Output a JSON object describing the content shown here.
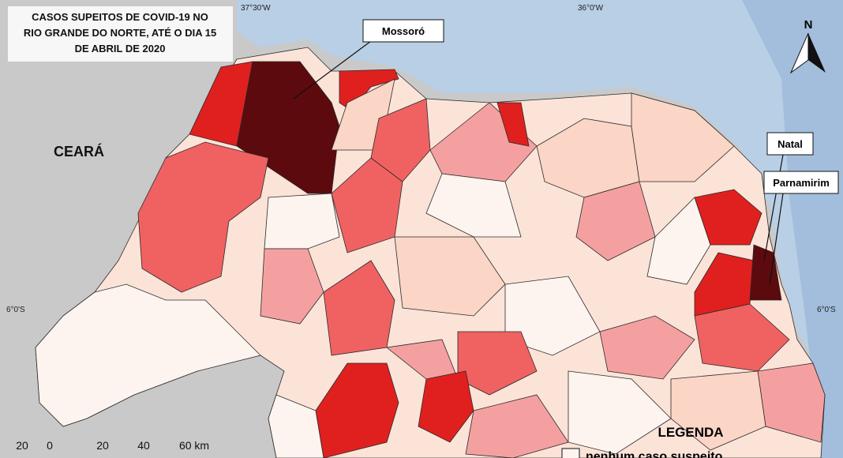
{
  "title": [
    "CASOS SUPEITOS DE COVID-19 NO",
    "RIO GRANDE DO NORTE, ATÉ O DIA 15",
    "DE ABRIL DE 2020"
  ],
  "graticule": {
    "top": [
      "37°30'W",
      "36°0'W"
    ],
    "sides": [
      "6°0'S",
      "6°0'S"
    ]
  },
  "places": {
    "state": "CEARÁ",
    "callouts": [
      "Mossoró",
      "Natal",
      "Parnamirim"
    ]
  },
  "north": "N",
  "scale": [
    "20",
    "0",
    "20",
    "40",
    "60 km"
  ],
  "legend": {
    "title": "LEGENDA",
    "items": [
      "nenhum caso suspeito"
    ]
  }
}
